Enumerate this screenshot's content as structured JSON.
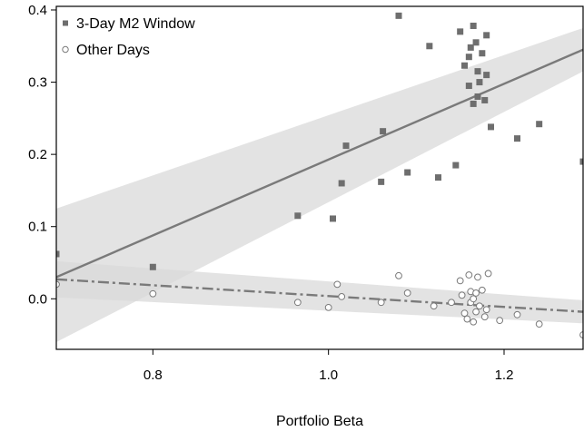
{
  "chart_data": {
    "type": "scatter",
    "title": "",
    "xlabel": "Portfolio Beta",
    "ylabel": "",
    "xlim": [
      0.69,
      1.29
    ],
    "ylim": [
      -0.07,
      0.405
    ],
    "xticks": [
      0.8,
      1.0,
      1.2
    ],
    "xtick_labels": [
      "0.8",
      "1.0",
      "1.2"
    ],
    "yticks": [
      0.0,
      0.1,
      0.2,
      0.3,
      0.4
    ],
    "ytick_labels": [
      "0.0",
      "0.1",
      "0.2",
      "0.3",
      "0.4"
    ],
    "grid": false,
    "legend": "top-left",
    "series": [
      {
        "name": "3-Day M2 Window",
        "marker": "filled-square",
        "color": "#6e6e6e",
        "fit": {
          "x": [
            0.69,
            1.29
          ],
          "y": [
            0.03,
            0.345
          ],
          "ci_lower": [
            -0.06,
            0.315
          ],
          "ci_upper": [
            0.125,
            0.375
          ],
          "line_style": "solid"
        },
        "x": [
          0.69,
          0.8,
          0.965,
          1.005,
          1.015,
          1.02,
          1.06,
          1.062,
          1.08,
          1.09,
          1.115,
          1.125,
          1.145,
          1.15,
          1.155,
          1.16,
          1.16,
          1.162,
          1.165,
          1.165,
          1.168,
          1.17,
          1.17,
          1.172,
          1.175,
          1.178,
          1.18,
          1.18,
          1.185,
          1.215,
          1.24,
          1.29
        ],
        "y": [
          0.062,
          0.044,
          0.115,
          0.111,
          0.16,
          0.212,
          0.162,
          0.232,
          0.392,
          0.175,
          0.35,
          0.168,
          0.185,
          0.37,
          0.323,
          0.335,
          0.295,
          0.348,
          0.378,
          0.27,
          0.355,
          0.315,
          0.28,
          0.3,
          0.34,
          0.275,
          0.31,
          0.365,
          0.238,
          0.222,
          0.242,
          0.19
        ]
      },
      {
        "name": "Other Days",
        "marker": "open-circle",
        "color": "#6e6e6e",
        "fit": {
          "x": [
            0.69,
            1.29
          ],
          "y": [
            0.027,
            -0.018
          ],
          "ci_lower": [
            0.002,
            -0.034
          ],
          "ci_upper": [
            0.052,
            -0.002
          ],
          "line_style": "dash-dot"
        },
        "x": [
          0.69,
          0.8,
          0.965,
          1.0,
          1.01,
          1.015,
          1.06,
          1.08,
          1.09,
          1.12,
          1.14,
          1.15,
          1.152,
          1.155,
          1.158,
          1.16,
          1.162,
          1.162,
          1.165,
          1.165,
          1.168,
          1.168,
          1.17,
          1.172,
          1.175,
          1.178,
          1.18,
          1.182,
          1.195,
          1.215,
          1.24,
          1.29
        ],
        "y": [
          0.02,
          0.007,
          -0.005,
          -0.012,
          0.02,
          0.003,
          -0.005,
          0.032,
          0.008,
          -0.01,
          -0.005,
          0.025,
          0.005,
          -0.02,
          -0.028,
          0.033,
          -0.005,
          0.01,
          0.0,
          -0.032,
          0.008,
          -0.018,
          0.03,
          -0.01,
          0.012,
          -0.025,
          -0.015,
          0.035,
          -0.03,
          -0.022,
          -0.035,
          -0.05
        ]
      }
    ]
  }
}
